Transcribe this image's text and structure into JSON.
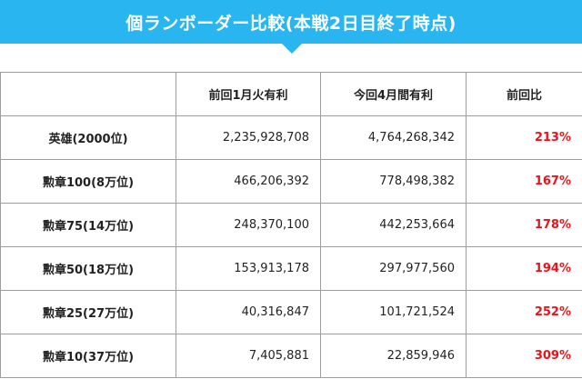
{
  "banner": {
    "title": "個ランボーダー比較(本戦2日目終了時点)",
    "color": "#29b6f0"
  },
  "table": {
    "headers": [
      "",
      "前回1月火有利",
      "今回4月間有利",
      "前回比"
    ],
    "rows": [
      {
        "label": "英雄(2000位)",
        "prev": "2,235,928,708",
        "curr": "4,764,268,342",
        "ratio": "213%"
      },
      {
        "label": "勲章100(8万位)",
        "prev": "466,206,392",
        "curr": "778,498,382",
        "ratio": "167%"
      },
      {
        "label": "勲章75(14万位)",
        "prev": "248,370,100",
        "curr": "442,253,664",
        "ratio": "178%"
      },
      {
        "label": "勲章50(18万位)",
        "prev": "153,913,178",
        "curr": "297,977,560",
        "ratio": "194%"
      },
      {
        "label": "勲章25(27万位)",
        "prev": "40,316,847",
        "curr": "101,721,524",
        "ratio": "252%"
      },
      {
        "label": "勲章10(37万位)",
        "prev": "7,405,881",
        "curr": "22,859,946",
        "ratio": "309%"
      }
    ],
    "ratio_color": "#e8141c"
  }
}
